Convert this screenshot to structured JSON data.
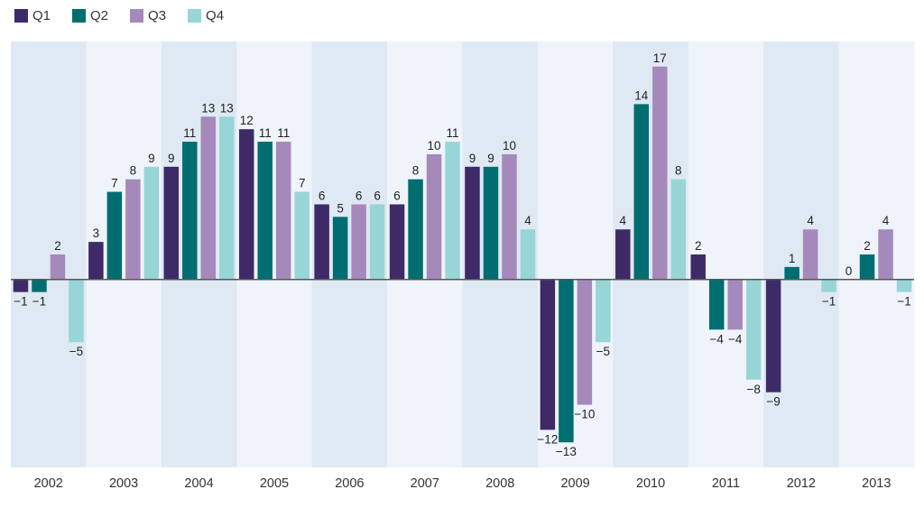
{
  "colors": {
    "Q1": "#3f2a68",
    "Q2": "#006e70",
    "Q3": "#a689bb",
    "Q4": "#98d5d6",
    "band_dark": "#dfe9f3",
    "band_light": "#eef4fa",
    "axis": "#555555"
  },
  "chart_data": {
    "type": "bar",
    "title": "",
    "xlabel": "",
    "ylabel": "",
    "ylim": [
      -15,
      19
    ],
    "grid": false,
    "legend_position": "top-left",
    "categories": [
      "2002",
      "2003",
      "2004",
      "2005",
      "2006",
      "2007",
      "2008",
      "2009",
      "2010",
      "2011",
      "2012",
      "2013"
    ],
    "series": [
      {
        "name": "Q1",
        "values": [
          -1,
          3,
          9,
          12,
          6,
          6,
          9,
          -12,
          4,
          2,
          -9,
          0
        ]
      },
      {
        "name": "Q2",
        "values": [
          -1,
          7,
          11,
          11,
          5,
          8,
          9,
          -13,
          14,
          -4,
          1,
          2
        ]
      },
      {
        "name": "Q3",
        "values": [
          2,
          8,
          13,
          11,
          6,
          10,
          10,
          -10,
          17,
          -4,
          4,
          4
        ]
      },
      {
        "name": "Q4",
        "values": [
          -5,
          9,
          13,
          7,
          6,
          11,
          4,
          -5,
          8,
          -8,
          -1,
          -1
        ]
      }
    ],
    "data_labels": [
      [
        "−1",
        "−1",
        "2",
        "−5"
      ],
      [
        "3",
        "7",
        "8",
        "9"
      ],
      [
        "9",
        "11",
        "13",
        "13"
      ],
      [
        "12",
        "11",
        "11",
        "7"
      ],
      [
        "6",
        "5",
        "6",
        "6"
      ],
      [
        "6",
        "8",
        "10",
        "11"
      ],
      [
        "9",
        "9",
        "10",
        "4"
      ],
      [
        "−12",
        "−13",
        "−10",
        "−5"
      ],
      [
        "4",
        "14",
        "17",
        "8"
      ],
      [
        "2",
        "−4",
        "−4",
        "−8"
      ],
      [
        "−9",
        "1",
        "4",
        "−1"
      ],
      [
        "0",
        "2",
        "4",
        "−1"
      ]
    ]
  }
}
